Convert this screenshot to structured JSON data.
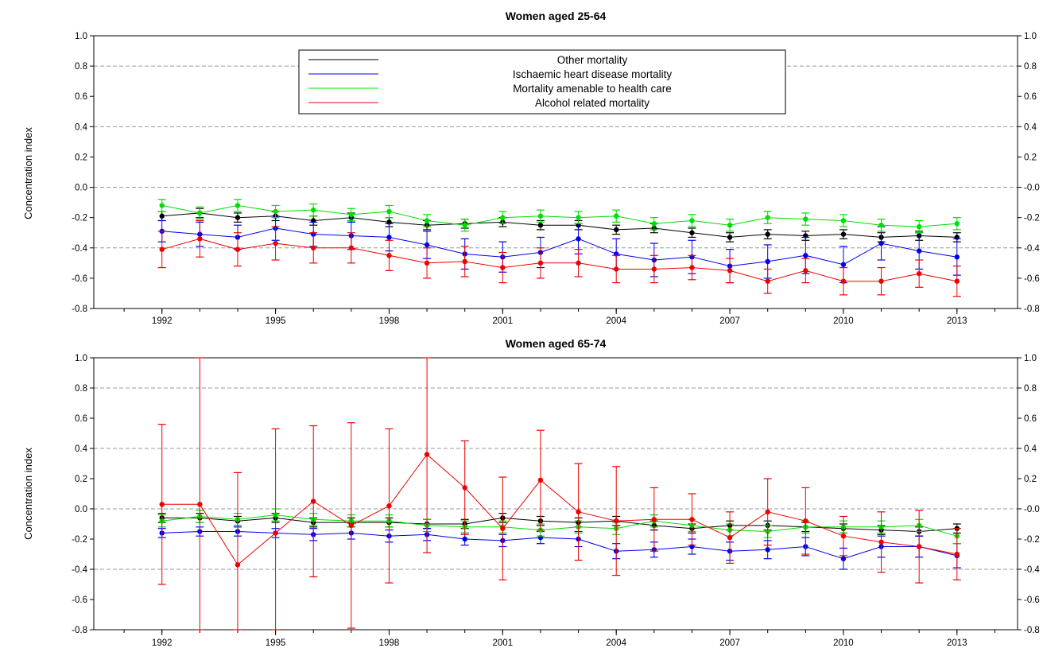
{
  "chart_data": [
    {
      "type": "line",
      "title": "Women aged 25-64",
      "ylabel": "Concentration index",
      "xlabel": "",
      "ylim": [
        -0.8,
        1.0
      ],
      "xlim": [
        1990.2,
        2014.6
      ],
      "yticks": [
        "1.0",
        "0.8",
        "0.6",
        "0.4",
        "0.2",
        "0.0",
        "-0.2",
        "-0.4",
        "-0.6",
        "-0.8"
      ],
      "yticks_right": [
        "1.0",
        "0.8",
        "0.6",
        "0.4",
        "0.2",
        "-0.0",
        "-0.2",
        "-0.4",
        "-0.6",
        "-0.8"
      ],
      "xticks": [
        "1992",
        "1995",
        "1998",
        "2001",
        "2004",
        "2007",
        "2010",
        "2013"
      ],
      "dashed_gridlines": [
        0.8,
        0.4,
        0.0,
        -0.4
      ],
      "legend": "top-center",
      "x": [
        1992,
        1993,
        1994,
        1995,
        1996,
        1997,
        1998,
        1999,
        2000,
        2001,
        2002,
        2003,
        2004,
        2005,
        2006,
        2007,
        2008,
        2009,
        2010,
        2011,
        2012,
        2013
      ],
      "series": [
        {
          "name": "Other mortality",
          "color": "#000000",
          "values": [
            -0.19,
            -0.17,
            -0.2,
            -0.19,
            -0.22,
            -0.2,
            -0.23,
            -0.25,
            -0.24,
            -0.23,
            -0.25,
            -0.25,
            -0.28,
            -0.27,
            -0.3,
            -0.33,
            -0.31,
            -0.32,
            -0.31,
            -0.33,
            -0.32,
            -0.33
          ],
          "err": [
            0.03,
            0.03,
            0.03,
            0.03,
            0.03,
            0.03,
            0.03,
            0.03,
            0.03,
            0.03,
            0.03,
            0.03,
            0.03,
            0.03,
            0.03,
            0.03,
            0.03,
            0.03,
            0.03,
            0.03,
            0.03,
            0.03
          ]
        },
        {
          "name": "Ischaemic heart disease mortality",
          "color": "#0000ee",
          "values": [
            -0.29,
            -0.31,
            -0.33,
            -0.27,
            -0.31,
            -0.32,
            -0.33,
            -0.38,
            -0.44,
            -0.46,
            -0.43,
            -0.34,
            -0.44,
            -0.48,
            -0.46,
            -0.52,
            -0.49,
            -0.45,
            -0.51,
            -0.37,
            -0.42,
            -0.46
          ],
          "err": [
            0.07,
            0.08,
            0.08,
            0.08,
            0.08,
            0.09,
            0.09,
            0.09,
            0.1,
            0.1,
            0.1,
            0.1,
            0.1,
            0.11,
            0.11,
            0.11,
            0.11,
            0.12,
            0.12,
            0.11,
            0.12,
            0.12
          ]
        },
        {
          "name": "Mortality amenable to health care",
          "color": "#00dd00",
          "values": [
            -0.12,
            -0.17,
            -0.12,
            -0.16,
            -0.15,
            -0.18,
            -0.16,
            -0.22,
            -0.25,
            -0.2,
            -0.19,
            -0.2,
            -0.19,
            -0.24,
            -0.22,
            -0.25,
            -0.2,
            -0.21,
            -0.22,
            -0.25,
            -0.26,
            -0.24
          ],
          "err": [
            0.04,
            0.04,
            0.04,
            0.04,
            0.04,
            0.04,
            0.04,
            0.04,
            0.04,
            0.04,
            0.04,
            0.04,
            0.04,
            0.04,
            0.04,
            0.04,
            0.04,
            0.04,
            0.04,
            0.04,
            0.04,
            0.04
          ]
        },
        {
          "name": "Alcohol related mortality",
          "color": "#ee0000",
          "values": [
            -0.41,
            -0.34,
            -0.41,
            -0.37,
            -0.4,
            -0.4,
            -0.45,
            -0.5,
            -0.49,
            -0.53,
            -0.5,
            -0.5,
            -0.54,
            -0.54,
            -0.53,
            -0.55,
            -0.62,
            -0.55,
            -0.62,
            -0.62,
            -0.57,
            -0.62
          ],
          "err": [
            0.12,
            0.12,
            0.11,
            0.11,
            0.1,
            0.1,
            0.1,
            0.1,
            0.1,
            0.1,
            0.1,
            0.09,
            0.09,
            0.09,
            0.08,
            0.08,
            0.08,
            0.08,
            0.09,
            0.09,
            0.09,
            0.1
          ]
        }
      ]
    },
    {
      "type": "line",
      "title": "Women aged 65-74",
      "ylabel": "Concentration index",
      "xlabel": "",
      "ylim": [
        -0.8,
        1.0
      ],
      "xlim": [
        1990.2,
        2014.6
      ],
      "yticks": [
        "1.0",
        "0.8",
        "0.6",
        "0.4",
        "0.2",
        "0.0",
        "-0.2",
        "-0.4",
        "-0.6",
        "-0.8"
      ],
      "yticks_right": [
        "1.0",
        "0.8",
        "0.6",
        "0.4",
        "0.2",
        "-0.0",
        "-0.2",
        "-0.4",
        "-0.6",
        "-0.8"
      ],
      "xticks": [
        "1992",
        "1995",
        "1998",
        "2001",
        "2004",
        "2007",
        "2010",
        "2013"
      ],
      "dashed_gridlines": [
        0.8,
        0.4,
        0.0,
        -0.4
      ],
      "x": [
        1992,
        1993,
        1994,
        1995,
        1996,
        1997,
        1998,
        1999,
        2000,
        2001,
        2002,
        2003,
        2004,
        2005,
        2006,
        2007,
        2008,
        2009,
        2010,
        2011,
        2012,
        2013
      ],
      "series": [
        {
          "name": "Other mortality",
          "color": "#000000",
          "values": [
            -0.06,
            -0.06,
            -0.08,
            -0.06,
            -0.09,
            -0.09,
            -0.09,
            -0.1,
            -0.1,
            -0.06,
            -0.08,
            -0.09,
            -0.08,
            -0.11,
            -0.13,
            -0.11,
            -0.11,
            -0.12,
            -0.13,
            -0.14,
            -0.15,
            -0.13
          ],
          "err": [
            0.03,
            0.03,
            0.03,
            0.03,
            0.03,
            0.03,
            0.03,
            0.03,
            0.03,
            0.03,
            0.03,
            0.03,
            0.03,
            0.03,
            0.03,
            0.03,
            0.03,
            0.03,
            0.03,
            0.03,
            0.03,
            0.03
          ]
        },
        {
          "name": "Ischaemic heart disease mortality",
          "color": "#0000ee",
          "values": [
            -0.16,
            -0.15,
            -0.15,
            -0.16,
            -0.17,
            -0.16,
            -0.18,
            -0.17,
            -0.2,
            -0.21,
            -0.19,
            -0.2,
            -0.28,
            -0.27,
            -0.25,
            -0.28,
            -0.27,
            -0.25,
            -0.33,
            -0.25,
            -0.25,
            -0.31
          ],
          "err": [
            0.03,
            0.03,
            0.03,
            0.03,
            0.04,
            0.04,
            0.04,
            0.04,
            0.04,
            0.04,
            0.04,
            0.05,
            0.05,
            0.05,
            0.05,
            0.06,
            0.06,
            0.06,
            0.07,
            0.07,
            0.07,
            0.08
          ]
        },
        {
          "name": "Mortality amenable to health care",
          "color": "#00dd00",
          "values": [
            -0.08,
            -0.05,
            -0.07,
            -0.04,
            -0.07,
            -0.08,
            -0.08,
            -0.11,
            -0.12,
            -0.12,
            -0.14,
            -0.12,
            -0.13,
            -0.08,
            -0.11,
            -0.14,
            -0.15,
            -0.12,
            -0.12,
            -0.12,
            -0.11,
            -0.18
          ],
          "err": [
            0.04,
            0.04,
            0.04,
            0.04,
            0.04,
            0.04,
            0.04,
            0.04,
            0.04,
            0.04,
            0.04,
            0.04,
            0.04,
            0.04,
            0.04,
            0.04,
            0.04,
            0.04,
            0.04,
            0.04,
            0.04,
            0.05
          ]
        },
        {
          "name": "Alcohol related mortality",
          "color": "#ee0000",
          "values": [
            0.03,
            0.03,
            -0.37,
            -0.16,
            0.05,
            -0.11,
            0.02,
            0.36,
            0.14,
            -0.13,
            0.19,
            -0.02,
            -0.08,
            -0.07,
            -0.07,
            -0.19,
            -0.02,
            -0.08,
            -0.18,
            -0.22,
            -0.25,
            -0.3
          ],
          "err": [
            0.53,
            0.97,
            0.61,
            0.69,
            0.5,
            0.68,
            0.51,
            0.65,
            0.31,
            0.34,
            0.33,
            0.32,
            0.36,
            0.21,
            0.17,
            0.17,
            0.22,
            0.22,
            0.13,
            0.2,
            0.24,
            0.17
          ]
        }
      ]
    }
  ]
}
